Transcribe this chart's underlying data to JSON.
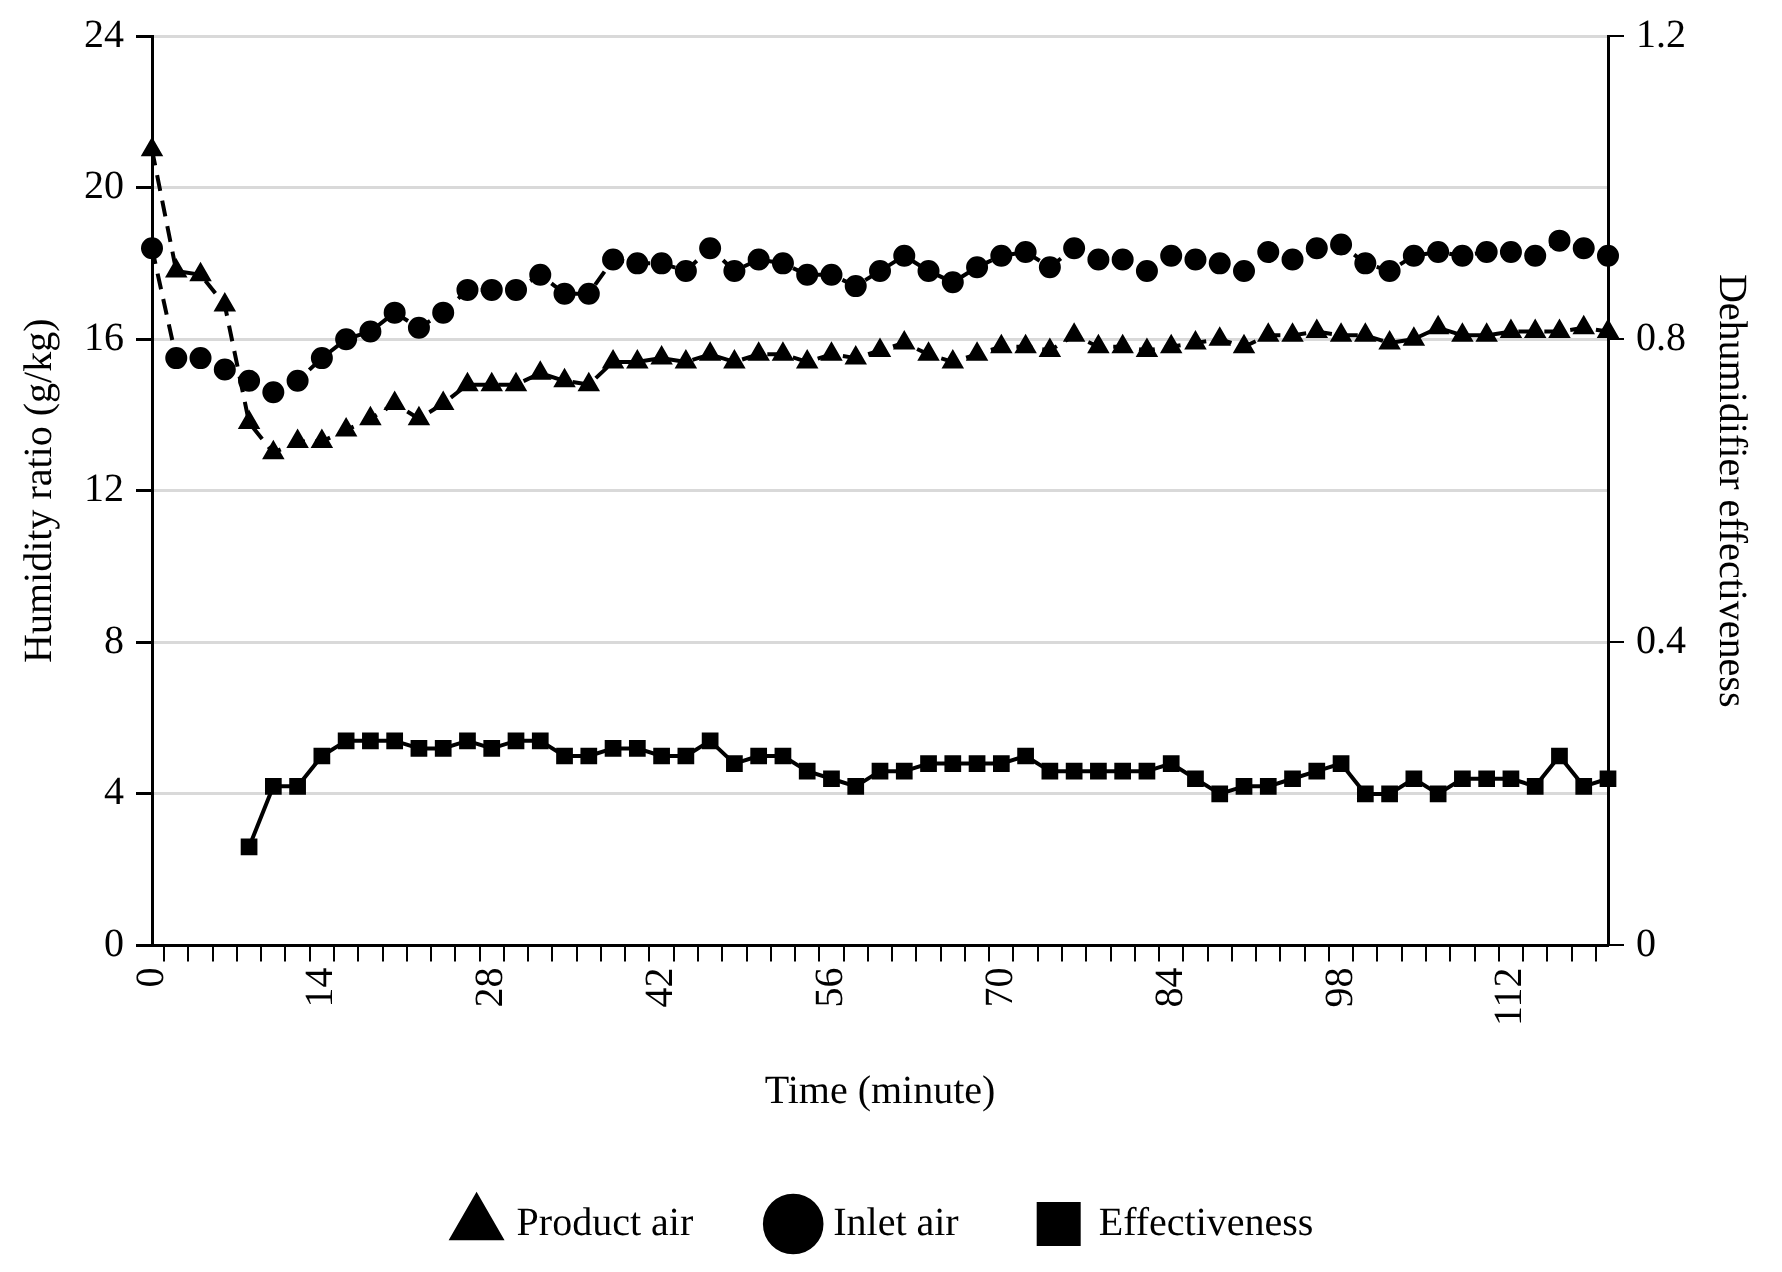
{
  "chart_data": {
    "type": "line",
    "xlabel": "Time (minute)",
    "ylabel": "Humidity ratio (g/kg)",
    "y2label": "Dehumidifier effectiveness",
    "categories": [
      "0",
      null,
      null,
      null,
      null,
      null,
      null,
      "14",
      null,
      null,
      null,
      null,
      null,
      null,
      "28",
      null,
      null,
      null,
      null,
      null,
      null,
      "42",
      null,
      null,
      null,
      null,
      null,
      null,
      "56",
      null,
      null,
      null,
      null,
      null,
      null,
      "70",
      null,
      null,
      null,
      null,
      null,
      null,
      "84",
      null,
      null,
      null,
      null,
      null,
      null,
      "98",
      null,
      null,
      null,
      null,
      null,
      null,
      "112",
      null,
      null,
      null,
      null
    ],
    "ylim": [
      0,
      24
    ],
    "yticks": [
      0,
      4,
      8,
      12,
      16,
      20,
      24
    ],
    "y2lim": [
      0,
      1.2
    ],
    "y2ticks": [
      0,
      0.4,
      0.8,
      1.2
    ],
    "grid": "y",
    "legend": "bottom",
    "series": [
      {
        "name": "Product air",
        "color": "#000000",
        "marker": "triangle",
        "line_style": "dashed",
        "values": [
          21.0,
          17.8,
          17.7,
          16.9,
          13.8,
          13.0,
          13.3,
          13.3,
          13.6,
          13.9,
          14.3,
          13.9,
          14.3,
          14.8,
          14.8,
          14.8,
          15.1,
          14.9,
          14.8,
          15.4,
          15.4,
          15.5,
          15.4,
          15.6,
          15.4,
          15.6,
          15.6,
          15.4,
          15.6,
          15.5,
          15.7,
          15.9,
          15.6,
          15.4,
          15.6,
          15.8,
          15.8,
          15.7,
          16.1,
          15.8,
          15.8,
          15.7,
          15.8,
          15.9,
          16.0,
          15.8,
          16.1,
          16.1,
          16.2,
          16.1,
          16.1,
          15.9,
          16.0,
          16.3,
          16.1,
          16.1,
          16.2,
          16.2,
          16.2,
          16.3,
          16.2
        ]
      },
      {
        "name": "Inlet air",
        "color": "#000000",
        "marker": "circle",
        "line_style": "dashed",
        "values": [
          18.4,
          15.5,
          15.5,
          15.2,
          14.9,
          14.6,
          14.9,
          15.5,
          16.0,
          16.2,
          16.7,
          16.3,
          16.7,
          17.3,
          17.3,
          17.3,
          17.7,
          17.2,
          17.2,
          18.1,
          18.0,
          18.0,
          17.8,
          18.4,
          17.8,
          18.1,
          18.0,
          17.7,
          17.7,
          17.4,
          17.8,
          18.2,
          17.8,
          17.5,
          17.9,
          18.2,
          18.3,
          17.9,
          18.4,
          18.1,
          18.1,
          17.8,
          18.2,
          18.1,
          18.0,
          17.8,
          18.3,
          18.1,
          18.4,
          18.5,
          18.0,
          17.8,
          18.2,
          18.3,
          18.2,
          18.3,
          18.3,
          18.2,
          18.6,
          18.4,
          18.2
        ]
      },
      {
        "name": "Effectiveness",
        "color": "#000000",
        "marker": "square",
        "line_style": "solid",
        "axis": "y2",
        "values": [
          null,
          null,
          null,
          null,
          0.13,
          0.21,
          0.21,
          0.25,
          0.27,
          0.27,
          0.27,
          0.26,
          0.26,
          0.27,
          0.26,
          0.27,
          0.27,
          0.25,
          0.25,
          0.26,
          0.26,
          0.25,
          0.25,
          0.27,
          0.24,
          0.25,
          0.25,
          0.23,
          0.22,
          0.21,
          0.23,
          0.23,
          0.24,
          0.24,
          0.24,
          0.24,
          0.25,
          0.23,
          0.23,
          0.23,
          0.23,
          0.23,
          0.24,
          0.22,
          0.2,
          0.21,
          0.21,
          0.22,
          0.23,
          0.24,
          0.2,
          0.2,
          0.22,
          0.2,
          0.22,
          0.22,
          0.22,
          0.21,
          0.25,
          0.21,
          0.22
        ]
      }
    ]
  }
}
